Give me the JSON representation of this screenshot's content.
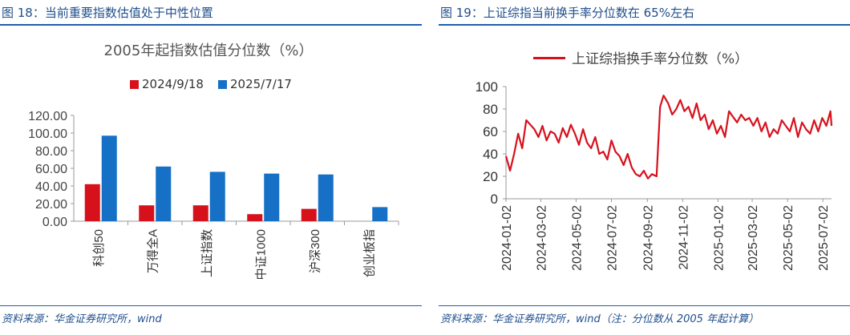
{
  "left": {
    "fig_title": "图 18：当前重要指数估值处于中性位置",
    "source": "资料来源：华金证券研究所，wind",
    "colors": {
      "series1": "#d7111c",
      "series2": "#1570c6",
      "accent": "#1f5fa8"
    },
    "chart_data": {
      "type": "bar",
      "title": "2005年起指数估值分位数（%）",
      "categories": [
        "科创50",
        "万得全A",
        "上证指数",
        "中证1000",
        "沪深300",
        "创业板指"
      ],
      "series": [
        {
          "name": "2024/9/18",
          "values": [
            42,
            18,
            18,
            8,
            14,
            0
          ]
        },
        {
          "name": "2025/7/17",
          "values": [
            97,
            62,
            56,
            54,
            53,
            16
          ]
        }
      ],
      "ylim": [
        0,
        120
      ],
      "yticks": [
        "0.00",
        "20.00",
        "40.00",
        "60.00",
        "80.00",
        "100.00",
        "120.00"
      ],
      "legend": "top"
    }
  },
  "right": {
    "fig_title": "图 19：上证综指当前换手率分位数在 65%左右",
    "source": "资料来源：华金证券研究所，wind（注：分位数从 2005 年起计算）",
    "colors": {
      "line": "#d7111c"
    },
    "chart_data": {
      "type": "line",
      "title": "",
      "series": [
        {
          "name": "上证综指换手率分位数（%）",
          "x": [
            "2024-01-02",
            "2024-01-09",
            "2024-01-16",
            "2024-01-23",
            "2024-01-30",
            "2024-02-06",
            "2024-02-20",
            "2024-02-27",
            "2024-03-05",
            "2024-03-12",
            "2024-03-19",
            "2024-03-26",
            "2024-04-02",
            "2024-04-09",
            "2024-04-16",
            "2024-04-23",
            "2024-04-30",
            "2024-05-07",
            "2024-05-14",
            "2024-05-21",
            "2024-05-28",
            "2024-06-04",
            "2024-06-11",
            "2024-06-18",
            "2024-06-25",
            "2024-07-02",
            "2024-07-09",
            "2024-07-16",
            "2024-07-23",
            "2024-07-30",
            "2024-08-06",
            "2024-08-13",
            "2024-08-20",
            "2024-08-27",
            "2024-09-03",
            "2024-09-10",
            "2024-09-18",
            "2024-09-24",
            "2024-09-30",
            "2024-10-08",
            "2024-10-15",
            "2024-10-22",
            "2024-10-29",
            "2024-11-05",
            "2024-11-12",
            "2024-11-19",
            "2024-11-26",
            "2024-12-03",
            "2024-12-10",
            "2024-12-17",
            "2024-12-24",
            "2024-12-31",
            "2025-01-07",
            "2025-01-14",
            "2025-01-21",
            "2025-02-04",
            "2025-02-11",
            "2025-02-18",
            "2025-02-25",
            "2025-03-04",
            "2025-03-11",
            "2025-03-18",
            "2025-03-25",
            "2025-04-01",
            "2025-04-08",
            "2025-04-15",
            "2025-04-22",
            "2025-04-29",
            "2025-05-06",
            "2025-05-13",
            "2025-05-20",
            "2025-05-27",
            "2025-06-03",
            "2025-06-10",
            "2025-06-17",
            "2025-06-24",
            "2025-07-01",
            "2025-07-08",
            "2025-07-15",
            "2025-07-17"
          ],
          "values": [
            38,
            25,
            40,
            58,
            45,
            70,
            62,
            55,
            65,
            52,
            60,
            58,
            50,
            63,
            55,
            66,
            58,
            48,
            62,
            50,
            45,
            55,
            40,
            42,
            35,
            52,
            42,
            38,
            30,
            40,
            28,
            22,
            20,
            25,
            18,
            22,
            20,
            82,
            92,
            85,
            75,
            80,
            88,
            78,
            82,
            72,
            85,
            70,
            75,
            62,
            70,
            58,
            65,
            55,
            78,
            68,
            75,
            70,
            72,
            65,
            72,
            60,
            68,
            55,
            62,
            58,
            70,
            65,
            60,
            72,
            55,
            68,
            62,
            58,
            70,
            60,
            72,
            65,
            78,
            65
          ]
        }
      ],
      "ylim": [
        0,
        100
      ],
      "yticks": [
        "0",
        "20",
        "40",
        "60",
        "80",
        "100"
      ],
      "xticks": [
        "2024-01-02",
        "2024-03-02",
        "2024-05-02",
        "2024-07-02",
        "2024-09-02",
        "2024-11-02",
        "2025-01-02",
        "2025-03-02",
        "2025-05-02",
        "2025-07-02"
      ],
      "legend": "top"
    }
  }
}
